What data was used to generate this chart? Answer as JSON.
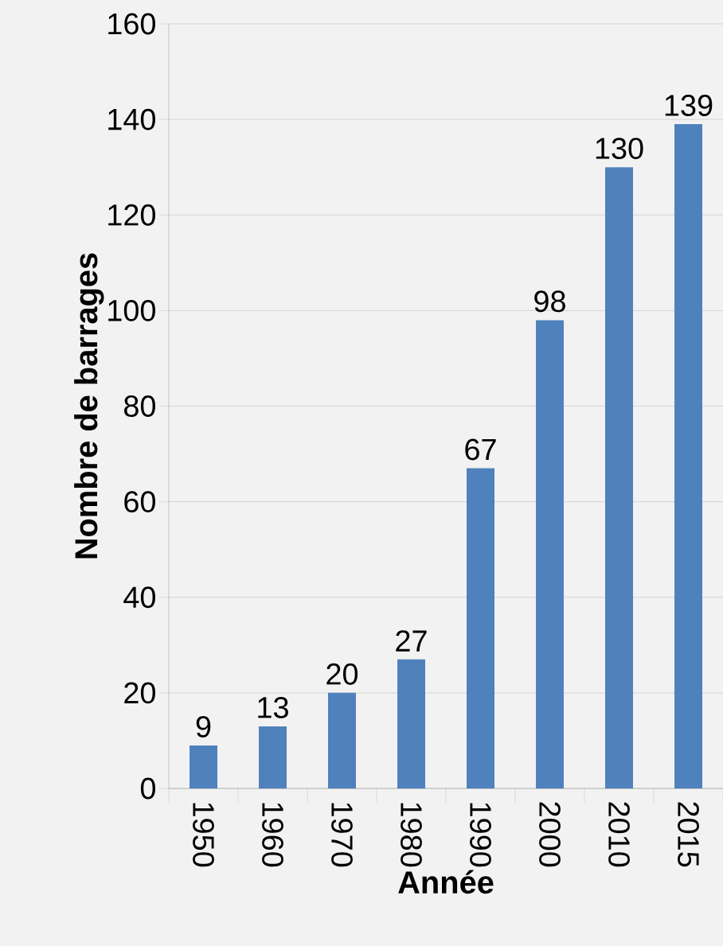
{
  "chart_data": {
    "type": "bar",
    "xlabel": "Année",
    "ylabel": "Nombre de barrages",
    "categories": [
      "1950",
      "1960",
      "1970",
      "1980",
      "1990",
      "2000",
      "2010",
      "2015"
    ],
    "values": [
      9,
      13,
      20,
      27,
      67,
      98,
      130,
      139
    ],
    "color": "#4f81bd",
    "ylim": [
      0,
      160
    ],
    "yticks": [
      0,
      20,
      40,
      60,
      80,
      100,
      120,
      140,
      160
    ],
    "grid": "y",
    "data_labels": true
  }
}
